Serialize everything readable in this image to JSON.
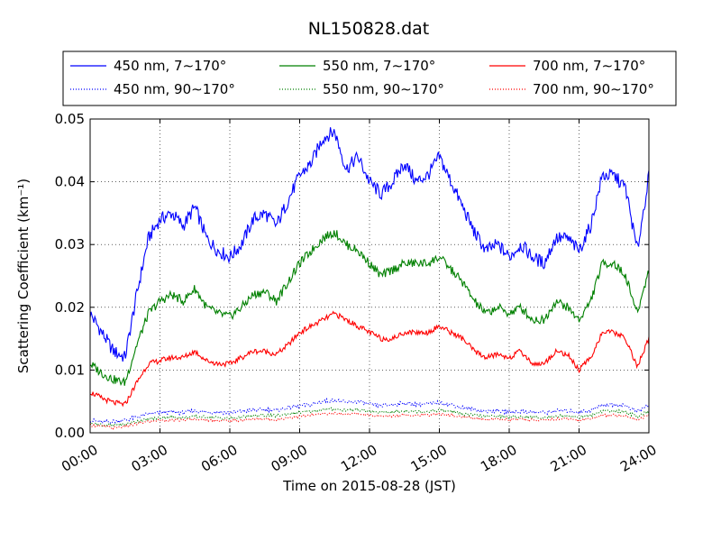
{
  "chart_data": {
    "type": "line",
    "title": "NL150828.dat",
    "xlabel": "Time on 2015-08-28 (JST)",
    "ylabel": "Scattering Coefficient (km⁻¹)",
    "xlim": [
      "00:00",
      "24:00"
    ],
    "ylim": [
      0.0,
      0.05
    ],
    "xticks": [
      "00:00",
      "03:00",
      "06:00",
      "09:00",
      "12:00",
      "15:00",
      "18:00",
      "21:00",
      "24:00"
    ],
    "yticks": [
      "0.00",
      "0.01",
      "0.02",
      "0.03",
      "0.04",
      "0.05"
    ],
    "grid": true,
    "legend_position": "top",
    "x_hours": [
      0,
      0.5,
      1,
      1.5,
      2,
      2.5,
      3,
      3.5,
      4,
      4.5,
      5,
      5.5,
      6,
      6.5,
      7,
      7.5,
      8,
      8.5,
      9,
      9.5,
      10,
      10.5,
      11,
      11.5,
      12,
      12.5,
      13,
      13.5,
      14,
      14.5,
      15,
      15.5,
      16,
      16.5,
      17,
      17.5,
      18,
      18.5,
      19,
      19.5,
      20,
      20.5,
      21,
      21.5,
      22,
      22.5,
      23,
      23.5,
      24
    ],
    "series": [
      {
        "name": "450 nm, 7∼170°",
        "color": "#0000ff",
        "style": "solid",
        "values": [
          0.019,
          0.016,
          0.013,
          0.012,
          0.022,
          0.031,
          0.034,
          0.035,
          0.033,
          0.036,
          0.031,
          0.029,
          0.028,
          0.03,
          0.034,
          0.035,
          0.033,
          0.037,
          0.041,
          0.043,
          0.047,
          0.048,
          0.042,
          0.044,
          0.04,
          0.038,
          0.04,
          0.043,
          0.04,
          0.041,
          0.044,
          0.04,
          0.036,
          0.032,
          0.029,
          0.03,
          0.028,
          0.03,
          0.028,
          0.027,
          0.031,
          0.031,
          0.029,
          0.033,
          0.041,
          0.041,
          0.039,
          0.029,
          0.041
        ]
      },
      {
        "name": "450 nm, 90∼170°",
        "color": "#0000ff",
        "style": "dotted",
        "values": [
          0.002,
          0.0017,
          0.0018,
          0.002,
          0.0025,
          0.003,
          0.0032,
          0.0033,
          0.0032,
          0.0035,
          0.0033,
          0.0033,
          0.0032,
          0.0034,
          0.0036,
          0.0037,
          0.0036,
          0.004,
          0.0043,
          0.0045,
          0.005,
          0.0052,
          0.0048,
          0.005,
          0.0045,
          0.0043,
          0.0045,
          0.0047,
          0.0045,
          0.0046,
          0.0048,
          0.0045,
          0.004,
          0.0037,
          0.0034,
          0.0035,
          0.0033,
          0.0034,
          0.0033,
          0.0032,
          0.0035,
          0.0035,
          0.0033,
          0.0036,
          0.0044,
          0.0045,
          0.0043,
          0.0034,
          0.0044
        ]
      },
      {
        "name": "550 nm, 7∼170°",
        "color": "#008000",
        "style": "solid",
        "values": [
          0.011,
          0.0095,
          0.0085,
          0.008,
          0.014,
          0.019,
          0.021,
          0.022,
          0.021,
          0.023,
          0.02,
          0.019,
          0.0185,
          0.02,
          0.022,
          0.0225,
          0.021,
          0.024,
          0.027,
          0.029,
          0.031,
          0.032,
          0.03,
          0.029,
          0.027,
          0.025,
          0.026,
          0.027,
          0.027,
          0.027,
          0.028,
          0.026,
          0.024,
          0.021,
          0.019,
          0.02,
          0.019,
          0.02,
          0.018,
          0.018,
          0.021,
          0.02,
          0.018,
          0.021,
          0.027,
          0.027,
          0.025,
          0.019,
          0.026
        ]
      },
      {
        "name": "550 nm, 90∼170°",
        "color": "#008000",
        "style": "dotted",
        "values": [
          0.0015,
          0.0013,
          0.0012,
          0.0014,
          0.0018,
          0.0022,
          0.0024,
          0.0025,
          0.0024,
          0.0026,
          0.0025,
          0.0024,
          0.0023,
          0.0025,
          0.0027,
          0.0028,
          0.0027,
          0.003,
          0.0032,
          0.0034,
          0.0037,
          0.0038,
          0.0036,
          0.0037,
          0.0034,
          0.0032,
          0.0033,
          0.0035,
          0.0034,
          0.0034,
          0.0036,
          0.0034,
          0.003,
          0.0028,
          0.0026,
          0.0027,
          0.0025,
          0.0026,
          0.0025,
          0.0024,
          0.0027,
          0.0027,
          0.0025,
          0.0028,
          0.0034,
          0.0035,
          0.0033,
          0.0026,
          0.0034
        ]
      },
      {
        "name": "700 nm, 7∼170°",
        "color": "#ff0000",
        "style": "solid",
        "values": [
          0.0065,
          0.0055,
          0.0048,
          0.0045,
          0.008,
          0.011,
          0.0115,
          0.012,
          0.012,
          0.013,
          0.0115,
          0.011,
          0.011,
          0.012,
          0.013,
          0.013,
          0.0125,
          0.014,
          0.016,
          0.017,
          0.018,
          0.019,
          0.018,
          0.017,
          0.016,
          0.015,
          0.015,
          0.016,
          0.016,
          0.016,
          0.017,
          0.016,
          0.015,
          0.013,
          0.012,
          0.0125,
          0.012,
          0.013,
          0.011,
          0.011,
          0.013,
          0.0125,
          0.01,
          0.012,
          0.016,
          0.016,
          0.015,
          0.0105,
          0.015
        ]
      },
      {
        "name": "700 nm, 90∼170°",
        "color": "#ff0000",
        "style": "dotted",
        "values": [
          0.0012,
          0.001,
          0.0008,
          0.001,
          0.0014,
          0.0018,
          0.002,
          0.002,
          0.002,
          0.0022,
          0.002,
          0.002,
          0.0019,
          0.002,
          0.0022,
          0.0022,
          0.0021,
          0.0024,
          0.0026,
          0.0028,
          0.003,
          0.0031,
          0.003,
          0.003,
          0.0028,
          0.0026,
          0.0027,
          0.0029,
          0.0028,
          0.0028,
          0.003,
          0.0028,
          0.0025,
          0.0023,
          0.0021,
          0.0022,
          0.0021,
          0.0022,
          0.002,
          0.002,
          0.0022,
          0.0022,
          0.002,
          0.0023,
          0.0028,
          0.0028,
          0.0027,
          0.0021,
          0.0028
        ]
      }
    ]
  }
}
